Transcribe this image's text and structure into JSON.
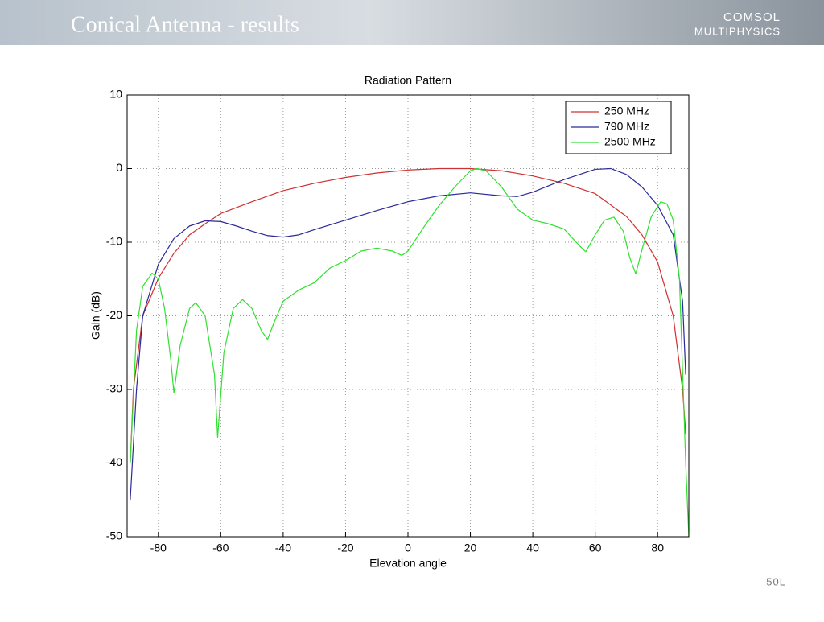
{
  "header": {
    "title": "Conical Antenna - results",
    "logo_top": "COMSOL",
    "logo_bottom": "MULTIPHYSICS",
    "footer": "50L"
  },
  "chart_data": {
    "type": "line",
    "title": "Radiation Pattern",
    "x_label": "Elevation angle",
    "y_label": "Gain (dB)",
    "xlim": [
      -90,
      90
    ],
    "ylim": [
      -50,
      10
    ],
    "xticks": [
      -80,
      -60,
      -40,
      -20,
      0,
      20,
      40,
      60,
      80
    ],
    "yticks": [
      -50,
      -40,
      -30,
      -20,
      -10,
      0,
      10
    ],
    "grid": true,
    "legend": "upper right",
    "series": [
      {
        "name": "250 MHz",
        "color": "#d03030",
        "x": [
          -89,
          -88,
          -85,
          -80,
          -75,
          -70,
          -65,
          -60,
          -50,
          -40,
          -30,
          -20,
          -10,
          0,
          10,
          15,
          20,
          30,
          40,
          50,
          60,
          70,
          75,
          80,
          85,
          88,
          89
        ],
        "values": [
          -40,
          -30,
          -20,
          -14.9,
          -11.5,
          -9,
          -7.5,
          -6.1,
          -4.5,
          -3,
          -2,
          -1.2,
          -0.6,
          -0.2,
          0,
          0,
          0,
          -0.3,
          -1,
          -2,
          -3.4,
          -6.5,
          -9,
          -12.7,
          -20,
          -30,
          -36
        ]
      },
      {
        "name": "790 MHz",
        "color": "#2a2a9a",
        "x": [
          -89,
          -87,
          -85,
          -80,
          -75,
          -70,
          -65,
          -60,
          -55,
          -50,
          -45,
          -40,
          -35,
          -30,
          -20,
          -10,
          0,
          10,
          20,
          30,
          35,
          40,
          50,
          60,
          65,
          70,
          75,
          80,
          85,
          88,
          89
        ],
        "values": [
          -45,
          -30,
          -20,
          -13,
          -9.5,
          -7.8,
          -7.1,
          -7.2,
          -7.8,
          -8.5,
          -9.1,
          -9.3,
          -9,
          -8.3,
          -7,
          -5.7,
          -4.5,
          -3.7,
          -3.3,
          -3.7,
          -3.8,
          -3.2,
          -1.5,
          -0.1,
          0,
          -0.8,
          -2.5,
          -5,
          -9,
          -18,
          -28
        ]
      },
      {
        "name": "2500 MHz",
        "color": "#30e030",
        "x": [
          -89,
          -87,
          -85,
          -82,
          -80,
          -78,
          -76,
          -75,
          -73,
          -70,
          -68,
          -65,
          -62,
          -61,
          -59,
          -56,
          -53,
          -50,
          -47,
          -45,
          -43,
          -40,
          -35,
          -30,
          -25,
          -20,
          -15,
          -10,
          -5,
          -2,
          0,
          5,
          10,
          15,
          20,
          22,
          25,
          30,
          35,
          40,
          45,
          50,
          55,
          57,
          60,
          63,
          66,
          69,
          71,
          73,
          75,
          78,
          81,
          83,
          85,
          87,
          89,
          90
        ],
        "values": [
          -40,
          -22,
          -16,
          -14.2,
          -15,
          -19,
          -26,
          -30.5,
          -24,
          -19,
          -18.2,
          -20,
          -28,
          -36.5,
          -25,
          -19,
          -17.8,
          -19,
          -22,
          -23.2,
          -21,
          -18,
          -16.5,
          -15.5,
          -13.5,
          -12.5,
          -11.2,
          -10.8,
          -11.2,
          -11.8,
          -11.2,
          -8,
          -5,
          -2.5,
          -0.3,
          0,
          -0.3,
          -2.5,
          -5.5,
          -7,
          -7.5,
          -8.2,
          -10.5,
          -11.3,
          -9,
          -7,
          -6.6,
          -8.5,
          -12,
          -14.3,
          -11,
          -6.5,
          -4.5,
          -4.8,
          -7,
          -15,
          -40,
          -50
        ]
      }
    ]
  }
}
